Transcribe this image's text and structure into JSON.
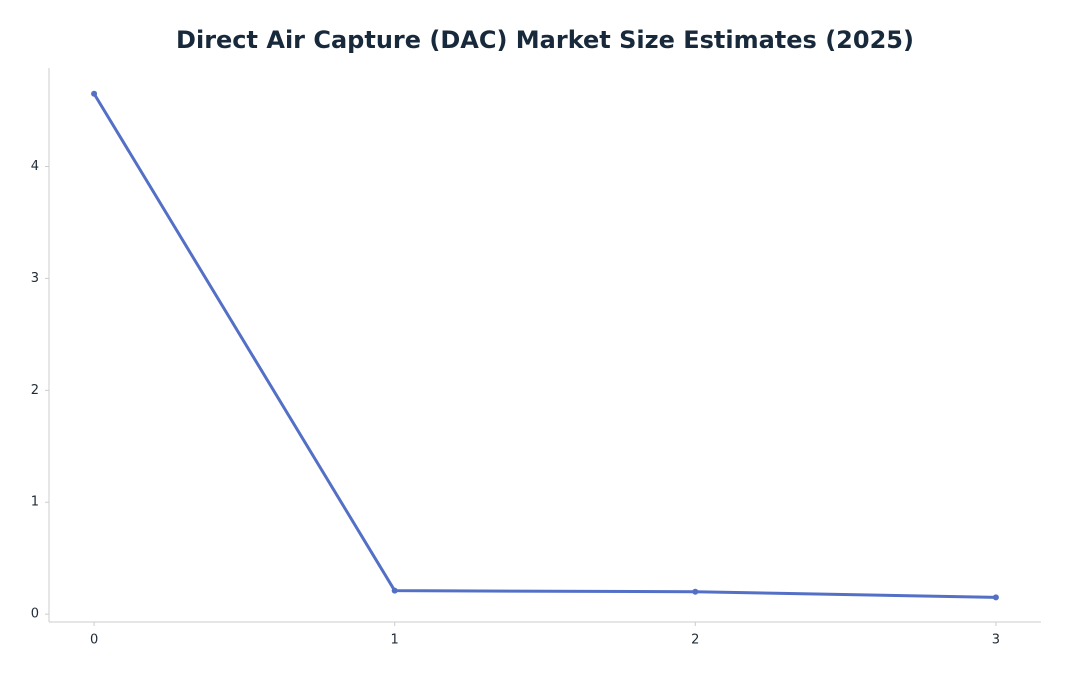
{
  "chart_data": {
    "type": "line",
    "title": "Direct Air Capture (DAC) Market Size Estimates (2025)",
    "x": [
      0,
      1,
      2,
      3
    ],
    "values": [
      4.65,
      0.21,
      0.2,
      0.15
    ],
    "color": "#5470c6",
    "xlim": [
      -0.15,
      3.15
    ],
    "ylim": [
      -0.07,
      4.88
    ],
    "xticks": [
      0,
      1,
      2,
      3
    ],
    "yticks": [
      0,
      1,
      2,
      3,
      4
    ]
  }
}
